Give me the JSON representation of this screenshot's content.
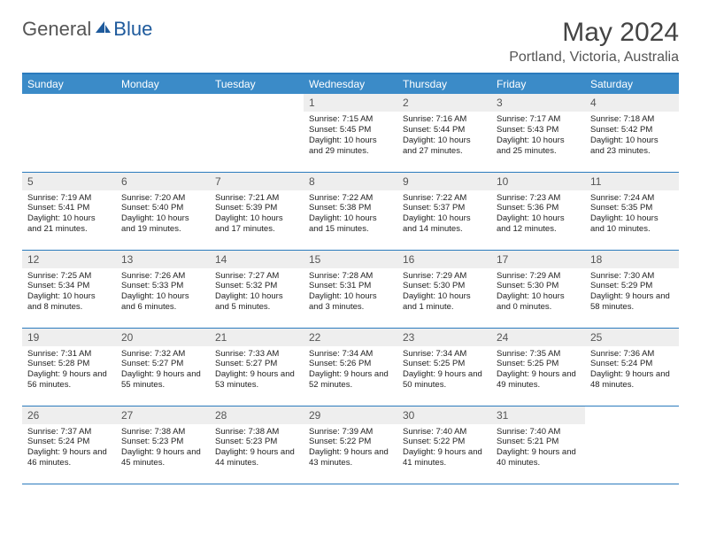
{
  "brand": {
    "part1": "General",
    "part2": "Blue"
  },
  "title": "May 2024",
  "location": "Portland, Victoria, Australia",
  "colors": {
    "header_bg": "#3b8bc8",
    "header_text": "#ffffff",
    "border": "#2b7bbd",
    "daynum_bg": "#eeeeee",
    "text": "#222222",
    "brand_gray": "#555555",
    "brand_blue": "#1e5a9c"
  },
  "day_headers": [
    "Sunday",
    "Monday",
    "Tuesday",
    "Wednesday",
    "Thursday",
    "Friday",
    "Saturday"
  ],
  "weeks": [
    [
      {
        "n": "",
        "sr": "",
        "ss": "",
        "dl": ""
      },
      {
        "n": "",
        "sr": "",
        "ss": "",
        "dl": ""
      },
      {
        "n": "",
        "sr": "",
        "ss": "",
        "dl": ""
      },
      {
        "n": "1",
        "sr": "7:15 AM",
        "ss": "5:45 PM",
        "dl": "10 hours and 29 minutes."
      },
      {
        "n": "2",
        "sr": "7:16 AM",
        "ss": "5:44 PM",
        "dl": "10 hours and 27 minutes."
      },
      {
        "n": "3",
        "sr": "7:17 AM",
        "ss": "5:43 PM",
        "dl": "10 hours and 25 minutes."
      },
      {
        "n": "4",
        "sr": "7:18 AM",
        "ss": "5:42 PM",
        "dl": "10 hours and 23 minutes."
      }
    ],
    [
      {
        "n": "5",
        "sr": "7:19 AM",
        "ss": "5:41 PM",
        "dl": "10 hours and 21 minutes."
      },
      {
        "n": "6",
        "sr": "7:20 AM",
        "ss": "5:40 PM",
        "dl": "10 hours and 19 minutes."
      },
      {
        "n": "7",
        "sr": "7:21 AM",
        "ss": "5:39 PM",
        "dl": "10 hours and 17 minutes."
      },
      {
        "n": "8",
        "sr": "7:22 AM",
        "ss": "5:38 PM",
        "dl": "10 hours and 15 minutes."
      },
      {
        "n": "9",
        "sr": "7:22 AM",
        "ss": "5:37 PM",
        "dl": "10 hours and 14 minutes."
      },
      {
        "n": "10",
        "sr": "7:23 AM",
        "ss": "5:36 PM",
        "dl": "10 hours and 12 minutes."
      },
      {
        "n": "11",
        "sr": "7:24 AM",
        "ss": "5:35 PM",
        "dl": "10 hours and 10 minutes."
      }
    ],
    [
      {
        "n": "12",
        "sr": "7:25 AM",
        "ss": "5:34 PM",
        "dl": "10 hours and 8 minutes."
      },
      {
        "n": "13",
        "sr": "7:26 AM",
        "ss": "5:33 PM",
        "dl": "10 hours and 6 minutes."
      },
      {
        "n": "14",
        "sr": "7:27 AM",
        "ss": "5:32 PM",
        "dl": "10 hours and 5 minutes."
      },
      {
        "n": "15",
        "sr": "7:28 AM",
        "ss": "5:31 PM",
        "dl": "10 hours and 3 minutes."
      },
      {
        "n": "16",
        "sr": "7:29 AM",
        "ss": "5:30 PM",
        "dl": "10 hours and 1 minute."
      },
      {
        "n": "17",
        "sr": "7:29 AM",
        "ss": "5:30 PM",
        "dl": "10 hours and 0 minutes."
      },
      {
        "n": "18",
        "sr": "7:30 AM",
        "ss": "5:29 PM",
        "dl": "9 hours and 58 minutes."
      }
    ],
    [
      {
        "n": "19",
        "sr": "7:31 AM",
        "ss": "5:28 PM",
        "dl": "9 hours and 56 minutes."
      },
      {
        "n": "20",
        "sr": "7:32 AM",
        "ss": "5:27 PM",
        "dl": "9 hours and 55 minutes."
      },
      {
        "n": "21",
        "sr": "7:33 AM",
        "ss": "5:27 PM",
        "dl": "9 hours and 53 minutes."
      },
      {
        "n": "22",
        "sr": "7:34 AM",
        "ss": "5:26 PM",
        "dl": "9 hours and 52 minutes."
      },
      {
        "n": "23",
        "sr": "7:34 AM",
        "ss": "5:25 PM",
        "dl": "9 hours and 50 minutes."
      },
      {
        "n": "24",
        "sr": "7:35 AM",
        "ss": "5:25 PM",
        "dl": "9 hours and 49 minutes."
      },
      {
        "n": "25",
        "sr": "7:36 AM",
        "ss": "5:24 PM",
        "dl": "9 hours and 48 minutes."
      }
    ],
    [
      {
        "n": "26",
        "sr": "7:37 AM",
        "ss": "5:24 PM",
        "dl": "9 hours and 46 minutes."
      },
      {
        "n": "27",
        "sr": "7:38 AM",
        "ss": "5:23 PM",
        "dl": "9 hours and 45 minutes."
      },
      {
        "n": "28",
        "sr": "7:38 AM",
        "ss": "5:23 PM",
        "dl": "9 hours and 44 minutes."
      },
      {
        "n": "29",
        "sr": "7:39 AM",
        "ss": "5:22 PM",
        "dl": "9 hours and 43 minutes."
      },
      {
        "n": "30",
        "sr": "7:40 AM",
        "ss": "5:22 PM",
        "dl": "9 hours and 41 minutes."
      },
      {
        "n": "31",
        "sr": "7:40 AM",
        "ss": "5:21 PM",
        "dl": "9 hours and 40 minutes."
      },
      {
        "n": "",
        "sr": "",
        "ss": "",
        "dl": ""
      }
    ]
  ],
  "labels": {
    "sunrise": "Sunrise:",
    "sunset": "Sunset:",
    "daylight": "Daylight:"
  }
}
